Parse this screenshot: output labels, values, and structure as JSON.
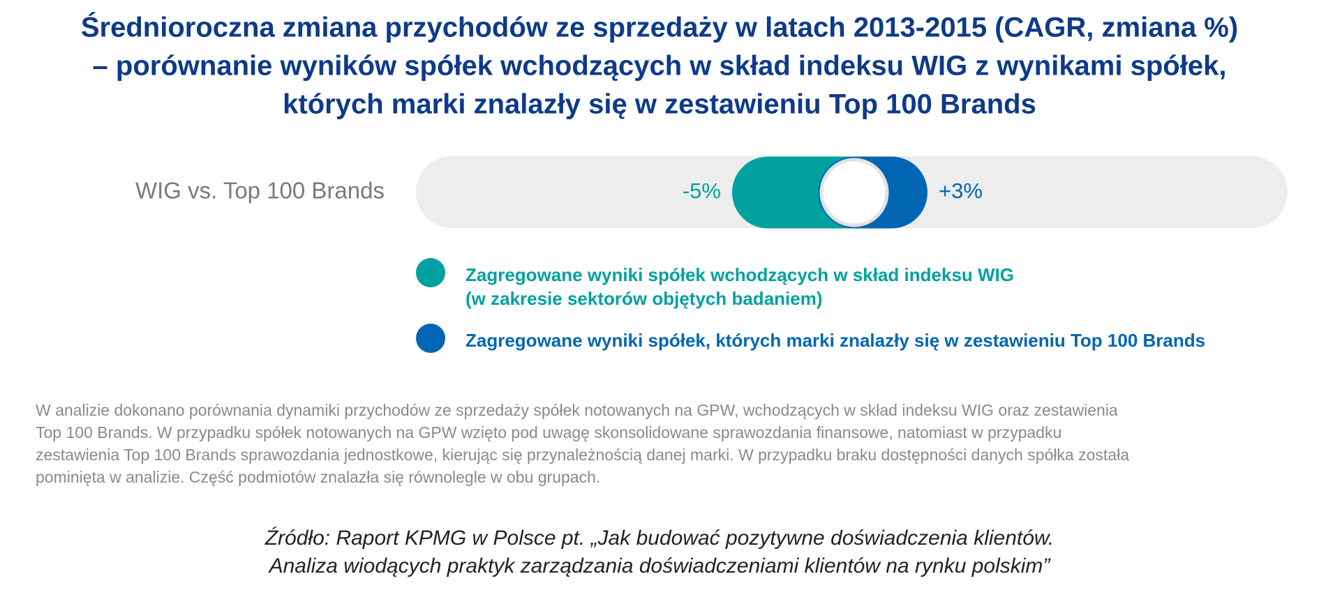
{
  "chart_data": {
    "type": "diverging-bar",
    "title": [
      "Średnioroczna zmiana przychodów ze sprzedaży w latach 2013-2015 (CAGR, zmiana %)",
      "– porównanie wyników spółek wchodzących w skład indeksu WIG z wynikami spółek,",
      "których marki znalazły się w zestawieniu Top 100 Brands"
    ],
    "categories": [
      "WIG vs. Top 100 Brands"
    ],
    "series": [
      {
        "name": [
          "Zagregowane wyniki spółek wchodzących w skład indeksu WIG",
          "(w zakresie sektorów objętych badaniem)"
        ],
        "color": "#00a19f",
        "values": [
          -5
        ],
        "value_labels": [
          "-5%"
        ]
      },
      {
        "name": [
          "Zagregowane wyniki spółek, których marki znalazły się w zestawieniu Top 100 Brands"
        ],
        "color": "#0066b3",
        "values": [
          3
        ],
        "value_labels": [
          "+3%"
        ]
      }
    ],
    "note": [
      "W analizie dokonano porównania dynamiki przychodów ze sprzedaży spółek notowanych na GPW, wchodzących w skład indeksu WIG oraz zestawienia",
      "Top 100 Brands. W przypadku spółek notowanych na GPW wzięto pod uwagę skonsolidowane sprawozdania finansowe, natomiast w przypadku",
      "zestawienia Top 100 Brands sprawozdania jednostkowe, kierując się przynależnością danej marki. W przypadku braku dostępności danych spółka została",
      "pominięta w analizie. Część podmiotów znalazła się równolegle w obu grupach."
    ],
    "source": [
      "Źródło: Raport KPMG w Polsce pt. „Jak budować pozytywne doświadczenia klientów.",
      "Analiza wiodących praktyk zarządzania doświadczeniami klientów na rynku polskim”"
    ]
  }
}
